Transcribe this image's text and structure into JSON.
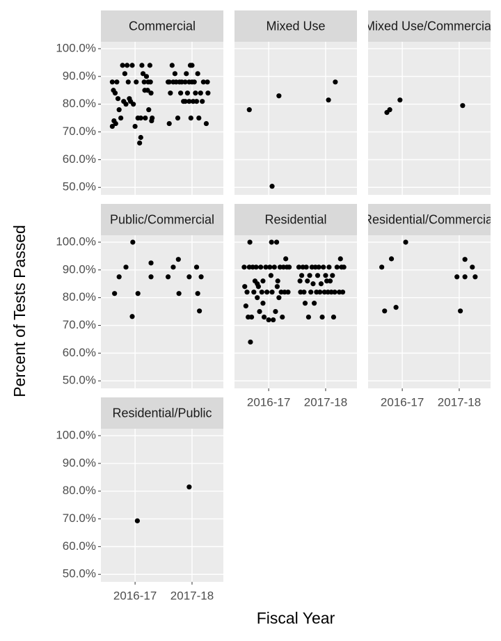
{
  "chart_data": {
    "type": "scatter",
    "x_label": "Fiscal Year",
    "y_label": "Percent of Tests Passed",
    "color": "#000000",
    "grid": true,
    "xlim": [
      0.4,
      2.55
    ],
    "xticks": [
      {
        "value": 1,
        "label": "2016-17"
      },
      {
        "value": 2,
        "label": "2017-18"
      }
    ],
    "ylim": [
      47.3,
      102.5
    ],
    "yticks": [
      {
        "value": 50,
        "label": "50.0%"
      },
      {
        "value": 60,
        "label": "60.0%"
      },
      {
        "value": 70,
        "label": "70.0%"
      },
      {
        "value": 80,
        "label": "80.0%"
      },
      {
        "value": 90,
        "label": "90.0%"
      },
      {
        "value": 100,
        "label": "100.0%"
      }
    ],
    "facets": [
      {
        "title": "Commercial",
        "x": [
          0.6,
          0.62,
          0.65,
          0.6,
          0.63,
          0.66,
          0.68,
          0.7,
          0.72,
          0.75,
          0.78,
          0.8,
          0.82,
          0.84,
          0.86,
          0.88,
          0.9,
          0.92,
          0.95,
          0.97,
          1.0,
          1.02,
          1.05,
          1.08,
          1.1,
          1.12,
          1.14,
          1.16,
          1.18,
          1.2,
          1.22,
          1.24,
          1.26,
          1.27,
          1.28,
          1.3,
          1.29,
          1.23,
          1.1,
          1.17,
          1.58,
          1.6,
          1.62,
          1.65,
          1.67,
          1.7,
          1.72,
          1.75,
          1.78,
          1.8,
          1.82,
          1.85,
          1.88,
          1.9,
          1.92,
          1.95,
          1.97,
          1.98,
          2.0,
          2.02,
          2.04,
          2.06,
          2.08,
          2.1,
          2.12,
          2.15,
          2.18,
          2.2,
          2.25,
          2.27,
          2.28,
          1.88,
          1.95,
          2.0,
          1.6
        ],
        "values": [
          88,
          85,
          84,
          72,
          74,
          73,
          88,
          82,
          78,
          75,
          94,
          81,
          91,
          80,
          94,
          88,
          82,
          81,
          94,
          80,
          72,
          88,
          75,
          66,
          68,
          94,
          91,
          88,
          75,
          90,
          85,
          78,
          94,
          88,
          84,
          75,
          74,
          88,
          75,
          85,
          88,
          73,
          84,
          94,
          88,
          91,
          88,
          75,
          88,
          84,
          88,
          81,
          88,
          91,
          84,
          88,
          94,
          75,
          94,
          81,
          88,
          84,
          81,
          91,
          75,
          84,
          81,
          88,
          73,
          88,
          84,
          81,
          81,
          88,
          88
        ]
      },
      {
        "title": "Mixed Use",
        "x": [
          0.66,
          1.06,
          1.18,
          2.05,
          2.17
        ],
        "values": [
          78,
          50.4,
          83,
          81.5,
          88
        ]
      },
      {
        "title": "Mixed Use/Commercial",
        "x": [
          0.73,
          0.78,
          0.96,
          2.06
        ],
        "values": [
          77,
          78,
          81.5,
          79.5
        ]
      },
      {
        "title": "Public/Commercial",
        "x": [
          0.64,
          0.72,
          0.84,
          0.96,
          0.95,
          1.05,
          1.28,
          1.28,
          1.58,
          1.67,
          1.76,
          1.77,
          1.95,
          2.08,
          2.1,
          2.13,
          2.16
        ],
        "values": [
          81.5,
          87.5,
          91,
          100,
          73.2,
          81.5,
          92.5,
          87.5,
          87.5,
          91,
          93.8,
          81.5,
          87.5,
          91,
          81.5,
          75.2,
          87.5
        ]
      },
      {
        "title": "Residential",
        "x": [
          0.57,
          0.58,
          0.6,
          0.62,
          0.64,
          0.66,
          0.67,
          0.68,
          0.7,
          0.72,
          0.74,
          0.76,
          0.78,
          0.8,
          0.82,
          0.84,
          0.86,
          0.88,
          0.9,
          0.92,
          0.95,
          0.97,
          1.0,
          1.02,
          1.04,
          1.05,
          1.06,
          1.08,
          1.1,
          1.12,
          1.14,
          1.16,
          1.18,
          1.2,
          1.22,
          1.24,
          1.26,
          1.28,
          1.3,
          1.32,
          1.34,
          1.36,
          0.8,
          0.9,
          1.15,
          1.53,
          1.55,
          1.56,
          1.58,
          1.6,
          1.62,
          1.64,
          1.66,
          1.68,
          1.7,
          1.72,
          1.74,
          1.76,
          1.78,
          1.8,
          1.82,
          1.84,
          1.86,
          1.88,
          1.9,
          1.92,
          1.94,
          1.96,
          1.98,
          2.0,
          2.02,
          2.04,
          2.06,
          2.08,
          2.1,
          2.12,
          2.14,
          2.16,
          2.2,
          2.24,
          2.26,
          2.28,
          2.3,
          2.32
        ],
        "values": [
          91,
          84,
          77,
          82,
          73,
          91,
          100,
          64,
          73,
          91,
          82,
          86,
          91,
          80,
          84,
          75,
          91,
          82,
          86,
          73,
          91,
          82,
          72,
          91,
          88,
          100,
          82,
          72,
          91,
          75,
          100,
          86,
          80,
          91,
          82,
          73,
          91,
          82,
          94,
          91,
          82,
          91,
          85,
          78,
          84,
          91,
          86,
          82,
          88,
          91,
          82,
          78,
          91,
          86,
          73,
          88,
          82,
          91,
          85,
          78,
          91,
          82,
          88,
          91,
          82,
          85,
          73,
          91,
          82,
          88,
          86,
          82,
          91,
          86,
          82,
          88,
          73,
          82,
          91,
          82,
          94,
          91,
          82,
          91
        ]
      },
      {
        "title": "Residential/Commercial",
        "x": [
          0.64,
          0.69,
          0.81,
          0.89,
          1.06,
          1.96,
          2.02,
          2.1,
          2.1,
          2.23,
          2.28
        ],
        "values": [
          91,
          75.2,
          94,
          76.5,
          100,
          87.5,
          75.2,
          93.8,
          87.5,
          91,
          87.5
        ]
      },
      {
        "title": "Residential/Public",
        "x": [
          1.04,
          1.95
        ],
        "values": [
          69.3,
          81.5
        ]
      }
    ]
  }
}
